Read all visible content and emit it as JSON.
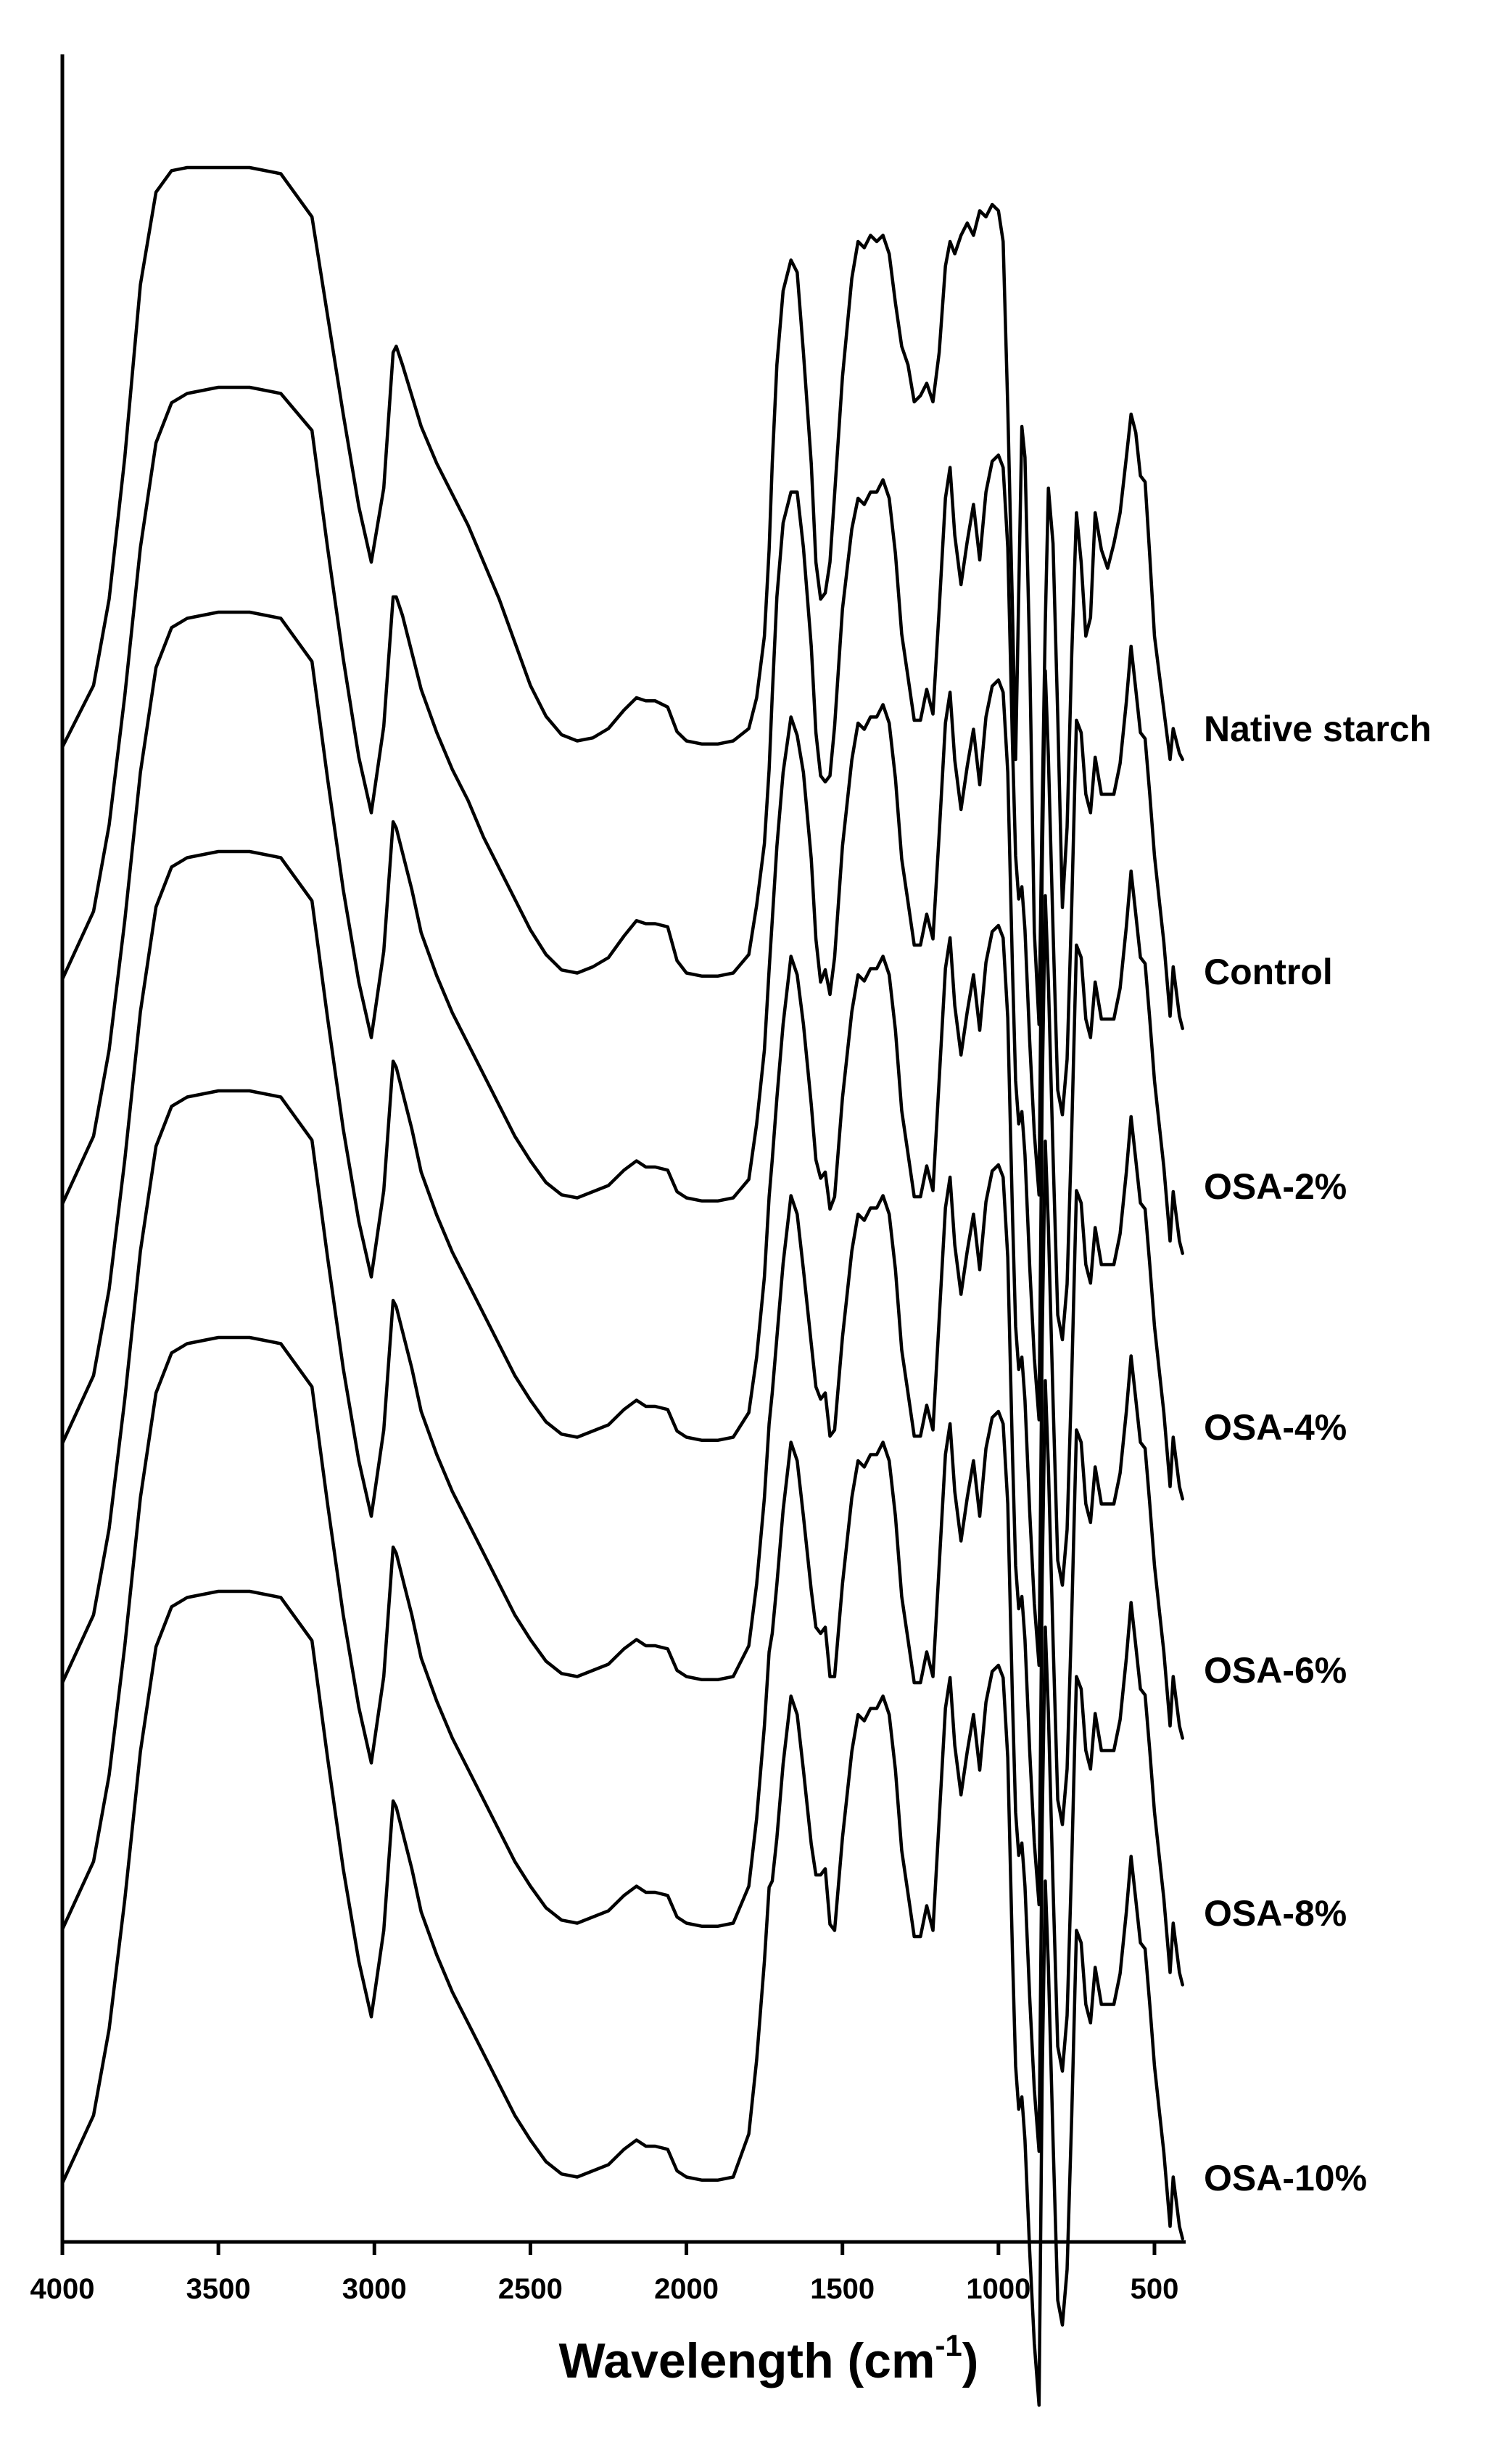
{
  "chart_data": {
    "type": "line",
    "title": "",
    "xlabel": "Wavelength (cm",
    "xlabel_superscript": "-1",
    "xlabel_close": ")",
    "ylabel": "",
    "xlim": [
      4000,
      400
    ],
    "x_reversed": true,
    "stacked_offset_traces": true,
    "y_axis_ticks": false,
    "grid": false,
    "xticks": [
      4000,
      3500,
      3000,
      2500,
      2000,
      1500,
      1000,
      500
    ],
    "xtick_labels": [
      "4000",
      "3500",
      "3000",
      "2500",
      "2000",
      "1500",
      "1000",
      "500"
    ],
    "series_labels_position": "right of each trace",
    "peaks_cm-1": {
      "o_h_stretch": 3400,
      "c_h_stretch": 2930,
      "c_o_ester": 1725,
      "water_bending": 1645,
      "carboxylate": 1570,
      "c_o_c": 1020,
      "fingerprint_peak": 575
    },
    "profile_x": [
      4000,
      3900,
      3850,
      3800,
      3750,
      3700,
      3650,
      3600,
      3500,
      3400,
      3300,
      3200,
      3150,
      3100,
      3050,
      3010,
      2970,
      2940,
      2930,
      2910,
      2880,
      2850,
      2800,
      2750,
      2700,
      2650,
      2600,
      2550,
      2500,
      2450,
      2400,
      2350,
      2300,
      2250,
      2200,
      2160,
      2130,
      2100,
      2060,
      2030,
      2000,
      1950,
      1900,
      1850,
      1800,
      1775,
      1750,
      1735,
      1725,
      1710,
      1690,
      1665,
      1645,
      1625,
      1600,
      1585,
      1570,
      1555,
      1540,
      1525,
      1500,
      1470,
      1450,
      1430,
      1410,
      1390,
      1370,
      1350,
      1330,
      1310,
      1290,
      1270,
      1250,
      1230,
      1210,
      1190,
      1170,
      1155,
      1140,
      1120,
      1100,
      1080,
      1060,
      1040,
      1020,
      1000,
      985,
      970,
      955,
      945,
      935,
      925,
      915,
      900,
      885,
      870,
      860,
      850,
      840,
      825,
      810,
      795,
      780,
      765,
      750,
      735,
      720,
      705,
      690,
      670,
      650,
      630,
      610,
      590,
      575,
      560,
      545,
      530,
      515,
      500,
      485,
      470,
      460,
      450,
      440,
      430,
      420,
      410
    ],
    "series": [
      {
        "name": "Native starch",
        "baseline": 0,
        "values": [
          0,
          100,
          240,
          470,
          750,
          900,
          935,
          940,
          940,
          940,
          930,
          860,
          700,
          540,
          390,
          300,
          420,
          640,
          650,
          620,
          570,
          520,
          460,
          410,
          360,
          300,
          240,
          170,
          100,
          50,
          20,
          10,
          15,
          30,
          60,
          80,
          75,
          75,
          65,
          25,
          10,
          5,
          5,
          10,
          30,
          80,
          180,
          320,
          460,
          620,
          740,
          790,
          770,
          640,
          460,
          300,
          240,
          250,
          300,
          410,
          600,
          760,
          820,
          810,
          830,
          820,
          830,
          800,
          720,
          650,
          620,
          560,
          570,
          590,
          560,
          640,
          780,
          820,
          800,
          830,
          850,
          830,
          870,
          860,
          880,
          870,
          820,
          550,
          220,
          -20,
          250,
          520,
          470,
          150,
          -300,
          -450,
          -100,
          200,
          420,
          330,
          50,
          -260,
          -130,
          150,
          380,
          300,
          180,
          210,
          380,
          320,
          290,
          330,
          380,
          470,
          540,
          510,
          440,
          430,
          310,
          180,
          120,
          60,
          20,
          -20,
          30,
          10,
          -10,
          -20
        ]
      },
      {
        "name": "Control",
        "baseline": 0,
        "values": [
          0,
          110,
          250,
          460,
          700,
          870,
          935,
          950,
          960,
          960,
          950,
          890,
          700,
          520,
          360,
          270,
          410,
          620,
          620,
          590,
          530,
          470,
          400,
          340,
          290,
          230,
          180,
          130,
          80,
          40,
          15,
          10,
          20,
          35,
          70,
          95,
          90,
          90,
          85,
          30,
          10,
          5,
          5,
          10,
          40,
          120,
          220,
          340,
          460,
          620,
          740,
          790,
          790,
          700,
          540,
          400,
          330,
          320,
          330,
          410,
          600,
          730,
          780,
          770,
          790,
          790,
          810,
          780,
          690,
          560,
          490,
          420,
          420,
          470,
          430,
          600,
          780,
          830,
          720,
          640,
          710,
          770,
          680,
          790,
          840,
          850,
          830,
          700,
          380,
          200,
          130,
          150,
          80,
          -100,
          -250,
          -350,
          180,
          500,
          360,
          80,
          -180,
          -220,
          -130,
          120,
          420,
          400,
          300,
          270,
          360,
          300,
          300,
          300,
          350,
          450,
          540,
          470,
          400,
          390,
          300,
          200,
          130,
          60,
          0,
          -60,
          20,
          -20,
          -60,
          -80
        ]
      },
      {
        "name": "OSA-2%",
        "baseline": 0,
        "values": [
          0,
          110,
          250,
          460,
          700,
          870,
          935,
          950,
          960,
          960,
          950,
          880,
          690,
          510,
          360,
          270,
          410,
          620,
          610,
          570,
          510,
          440,
          370,
          310,
          260,
          210,
          160,
          110,
          70,
          35,
          15,
          10,
          20,
          30,
          55,
          70,
          60,
          60,
          55,
          20,
          10,
          5,
          5,
          10,
          40,
          130,
          250,
          380,
          460,
          580,
          700,
          790,
          760,
          700,
          560,
          430,
          360,
          380,
          340,
          400,
          580,
          720,
          780,
          770,
          790,
          790,
          810,
          780,
          690,
          560,
          490,
          420,
          420,
          470,
          430,
          600,
          780,
          830,
          720,
          640,
          710,
          770,
          680,
          790,
          840,
          850,
          830,
          700,
          380,
          200,
          130,
          150,
          80,
          -100,
          -250,
          -350,
          180,
          500,
          360,
          80,
          -180,
          -220,
          -130,
          120,
          420,
          400,
          300,
          270,
          360,
          300,
          300,
          300,
          350,
          450,
          540,
          470,
          400,
          390,
          300,
          200,
          130,
          60,
          0,
          -60,
          20,
          -20,
          -60,
          -80
        ]
      },
      {
        "name": "OSA-4%",
        "baseline": 0,
        "values": [
          0,
          110,
          250,
          460,
          700,
          870,
          935,
          950,
          960,
          960,
          950,
          880,
          690,
          510,
          360,
          270,
          410,
          620,
          610,
          570,
          510,
          440,
          370,
          310,
          260,
          210,
          160,
          110,
          70,
          35,
          15,
          10,
          20,
          30,
          55,
          70,
          60,
          60,
          55,
          20,
          10,
          5,
          5,
          10,
          50,
          140,
          270,
          400,
          460,
          560,
          680,
          790,
          760,
          680,
          550,
          460,
          430,
          440,
          380,
          400,
          560,
          700,
          760,
          750,
          770,
          770,
          790,
          760,
          670,
          540,
          470,
          400,
          400,
          450,
          410,
          590,
          770,
          820,
          710,
          630,
          700,
          760,
          670,
          780,
          830,
          840,
          820,
          690,
          370,
          190,
          120,
          140,
          70,
          -110,
          -260,
          -360,
          170,
          490,
          350,
          70,
          -190,
          -230,
          -140,
          110,
          410,
          390,
          290,
          260,
          350,
          290,
          290,
          290,
          340,
          440,
          530,
          460,
          390,
          380,
          290,
          190,
          120,
          50,
          -10,
          -70,
          10,
          -30,
          -70,
          -90
        ]
      },
      {
        "name": "OSA-6%",
        "baseline": 0,
        "values": [
          0,
          110,
          250,
          460,
          700,
          870,
          935,
          950,
          960,
          960,
          950,
          880,
          690,
          510,
          360,
          270,
          410,
          620,
          610,
          570,
          510,
          440,
          370,
          310,
          260,
          210,
          160,
          110,
          70,
          35,
          15,
          10,
          20,
          30,
          55,
          70,
          60,
          60,
          55,
          20,
          10,
          5,
          5,
          10,
          60,
          160,
          300,
          420,
          470,
          560,
          680,
          790,
          760,
          670,
          550,
          480,
          460,
          470,
          400,
          410,
          560,
          700,
          760,
          750,
          770,
          770,
          790,
          760,
          670,
          540,
          470,
          400,
          400,
          450,
          410,
          590,
          770,
          820,
          710,
          630,
          700,
          760,
          670,
          780,
          830,
          840,
          820,
          690,
          370,
          190,
          120,
          140,
          70,
          -110,
          -260,
          -360,
          170,
          490,
          350,
          70,
          -190,
          -230,
          -140,
          110,
          410,
          390,
          290,
          260,
          350,
          290,
          290,
          290,
          340,
          440,
          530,
          460,
          390,
          380,
          290,
          190,
          120,
          50,
          -10,
          -70,
          10,
          -30,
          -70,
          -90
        ]
      },
      {
        "name": "OSA-8%",
        "baseline": 0,
        "values": [
          0,
          110,
          250,
          460,
          700,
          870,
          935,
          950,
          960,
          960,
          950,
          880,
          690,
          510,
          360,
          270,
          410,
          620,
          610,
          570,
          510,
          440,
          370,
          310,
          260,
          210,
          160,
          110,
          70,
          35,
          15,
          10,
          20,
          30,
          55,
          70,
          60,
          60,
          55,
          20,
          10,
          5,
          5,
          10,
          70,
          180,
          330,
          450,
          480,
          560,
          680,
          790,
          760,
          670,
          550,
          490,
          480,
          490,
          410,
          410,
          560,
          700,
          760,
          750,
          770,
          770,
          790,
          760,
          670,
          540,
          470,
          400,
          400,
          450,
          410,
          590,
          770,
          820,
          710,
          630,
          700,
          760,
          670,
          780,
          830,
          840,
          820,
          690,
          370,
          190,
          120,
          140,
          70,
          -110,
          -260,
          -360,
          170,
          490,
          350,
          70,
          -190,
          -230,
          -140,
          110,
          410,
          390,
          290,
          260,
          350,
          290,
          290,
          290,
          340,
          440,
          530,
          460,
          390,
          380,
          290,
          190,
          120,
          50,
          -10,
          -70,
          10,
          -30,
          -70,
          -90
        ]
      },
      {
        "name": "OSA-10%",
        "baseline": 0,
        "values": [
          0,
          110,
          250,
          460,
          700,
          870,
          935,
          950,
          960,
          960,
          950,
          880,
          690,
          510,
          360,
          270,
          410,
          620,
          610,
          570,
          510,
          440,
          370,
          310,
          260,
          210,
          160,
          110,
          70,
          35,
          15,
          10,
          20,
          30,
          55,
          70,
          60,
          60,
          55,
          20,
          10,
          5,
          5,
          10,
          80,
          200,
          360,
          480,
          490,
          560,
          680,
          790,
          760,
          670,
          550,
          500,
          500,
          510,
          420,
          410,
          560,
          700,
          760,
          750,
          770,
          770,
          790,
          760,
          670,
          540,
          470,
          400,
          400,
          450,
          410,
          590,
          770,
          820,
          710,
          630,
          700,
          760,
          670,
          780,
          830,
          840,
          820,
          690,
          370,
          190,
          120,
          140,
          70,
          -110,
          -260,
          -360,
          170,
          490,
          350,
          70,
          -190,
          -230,
          -140,
          110,
          410,
          390,
          290,
          260,
          350,
          290,
          290,
          290,
          340,
          440,
          530,
          460,
          390,
          380,
          290,
          190,
          120,
          50,
          -10,
          -70,
          10,
          -30,
          -70,
          -90
        ]
      }
    ]
  }
}
